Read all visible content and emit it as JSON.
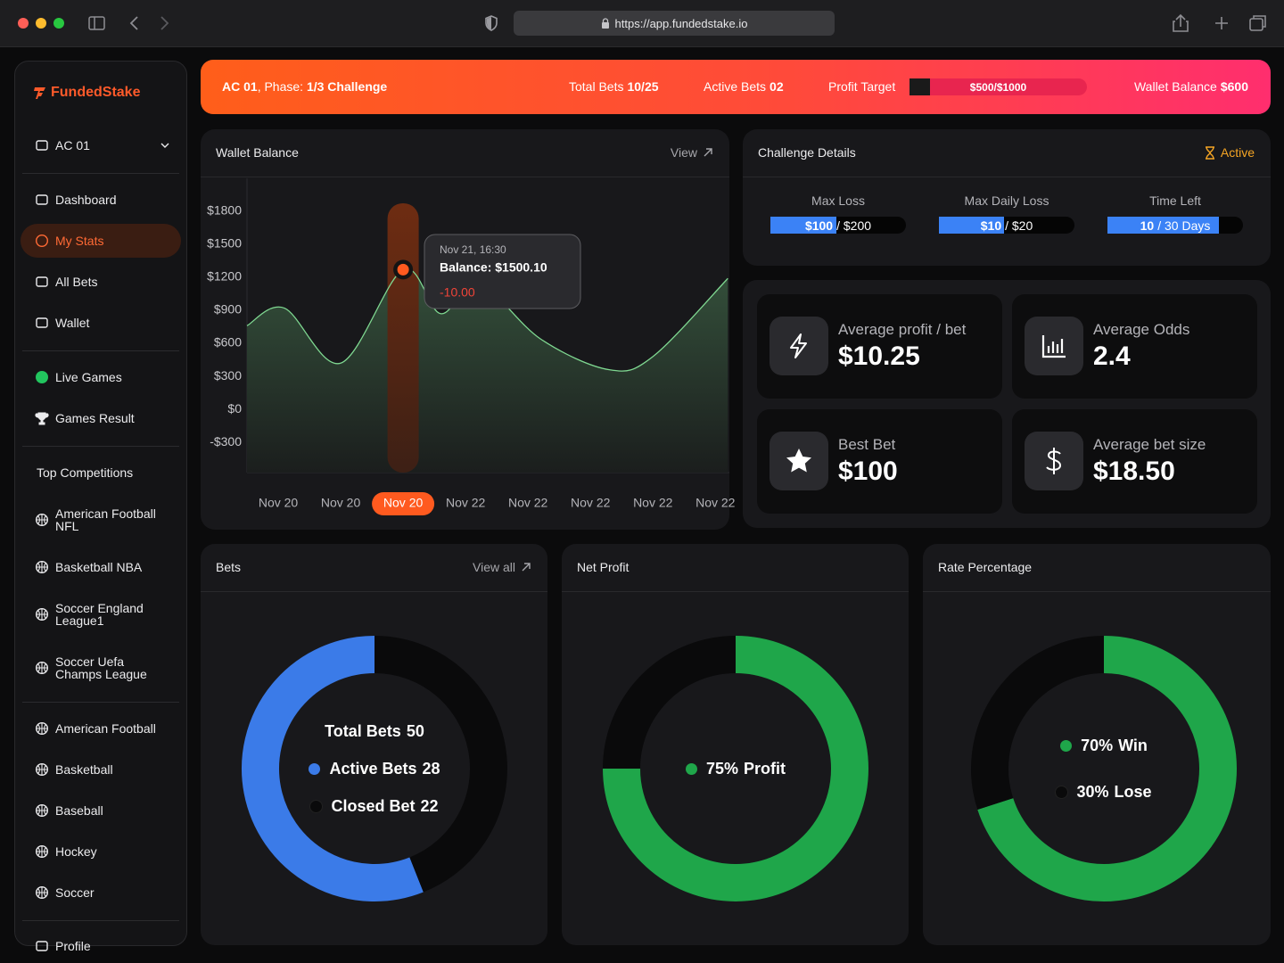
{
  "browser": {
    "url": "https://app.fundedstake.io"
  },
  "sidebar": {
    "brand": "FundedStake",
    "account": "AC 01",
    "nav": [
      "Dashboard",
      "My Stats",
      "All Bets",
      "Wallet"
    ],
    "live": [
      "Live Games",
      "Games Result"
    ],
    "competitions_title": "Top Competitions",
    "competitions": [
      "American Football NFL",
      "Basketball NBA",
      "Soccer England League1",
      "Soccer Uefa Champs League"
    ],
    "sports": [
      "American Football",
      "Basketball",
      "Baseball",
      "Hockey",
      "Soccer"
    ],
    "profile": "Profile"
  },
  "banner": {
    "account": "AC 01",
    "phase_label": ", Phase: ",
    "phase": "1/3 Challenge",
    "total_bets_label": "Total Bets",
    "total_bets": "10/25",
    "active_bets_label": "Active Bets",
    "active_bets": "02",
    "profit_target_label": "Profit Target",
    "profit_target": "$500/$1000",
    "wallet_label": "Wallet Balance",
    "wallet": "$600"
  },
  "wallet": {
    "type": "area",
    "title": "Wallet Balance",
    "link": "View",
    "xlim": [
      -0.5,
      7.21
    ],
    "ylim": [
      -575,
      2100
    ],
    "xticks": [
      {
        "value": 0,
        "label": "Nov 20"
      },
      {
        "value": 1,
        "label": "Nov 20"
      },
      {
        "value": 2,
        "label": "Nov 20"
      },
      {
        "value": 3,
        "label": "Nov 22"
      },
      {
        "value": 4,
        "label": "Nov 22"
      },
      {
        "value": 5,
        "label": "Nov 22"
      },
      {
        "value": 6,
        "label": "Nov 22"
      },
      {
        "value": 7,
        "label": "Nov 22"
      }
    ],
    "yticks": [
      {
        "value": 1800,
        "label": "$1800"
      },
      {
        "value": 1500,
        "label": "$1500"
      },
      {
        "value": 1200,
        "label": "$1200"
      },
      {
        "value": 900,
        "label": "$900"
      },
      {
        "value": 600,
        "label": "$600"
      },
      {
        "value": 300,
        "label": "$300"
      },
      {
        "value": 0,
        "label": "$0"
      },
      {
        "value": -300,
        "label": "-$300"
      }
    ],
    "series": [
      {
        "color": "#7fd891",
        "x": [
          -0.5,
          0.1,
          1.0,
          2.0,
          2.6,
          3.2,
          4.2,
          5.3,
          6.0,
          7.2
        ],
        "values": [
          760,
          920,
          420,
          1270,
          870,
          1150,
          640,
          360,
          480,
          1190
        ]
      }
    ],
    "tooltip": {
      "date": "Nov 21, 16:30",
      "balance": "Balance: $1500.10",
      "change": "-10.00"
    }
  },
  "challenge": {
    "title": "Challenge Details",
    "status": "Active",
    "items": [
      {
        "label": "Max Loss",
        "current": "$100",
        "rest": "/ $200"
      },
      {
        "label": "Max Daily Loss",
        "current": "$10",
        "rest": "/ $20"
      },
      {
        "label": "Time Left",
        "current": "10",
        "rest": "/ 30 Days"
      }
    ]
  },
  "stats": [
    {
      "label": "Average profit / bet",
      "value": "$10.25"
    },
    {
      "label": "Average Odds",
      "value": "2.4"
    },
    {
      "label": "Best Bet",
      "value": "$100"
    },
    {
      "label": "Average bet size",
      "value": "$18.50"
    }
  ],
  "bets": {
    "type": "donut",
    "title": "Bets",
    "link": "View all",
    "total": {
      "label": "Total Bets",
      "value": 50
    },
    "segments": [
      {
        "name": "Active Bets",
        "value": 28,
        "color": "#3b7be8"
      },
      {
        "name": "Closed Bet",
        "value": 22,
        "color": "#0a0a0b"
      }
    ]
  },
  "net_profit": {
    "type": "donut",
    "title": "Net Profit",
    "segments": [
      {
        "name": "Profit",
        "value": 75,
        "value_label": "75%",
        "color": "#1fa64a"
      }
    ]
  },
  "rate": {
    "type": "donut",
    "title": "Rate Percentage",
    "segments": [
      {
        "name": "Win",
        "value": 70,
        "value_label": "70%",
        "color": "#1fa64a"
      },
      {
        "name": "Lose",
        "value": 30,
        "value_label": "30%",
        "color": "#0a0a0b"
      }
    ]
  }
}
